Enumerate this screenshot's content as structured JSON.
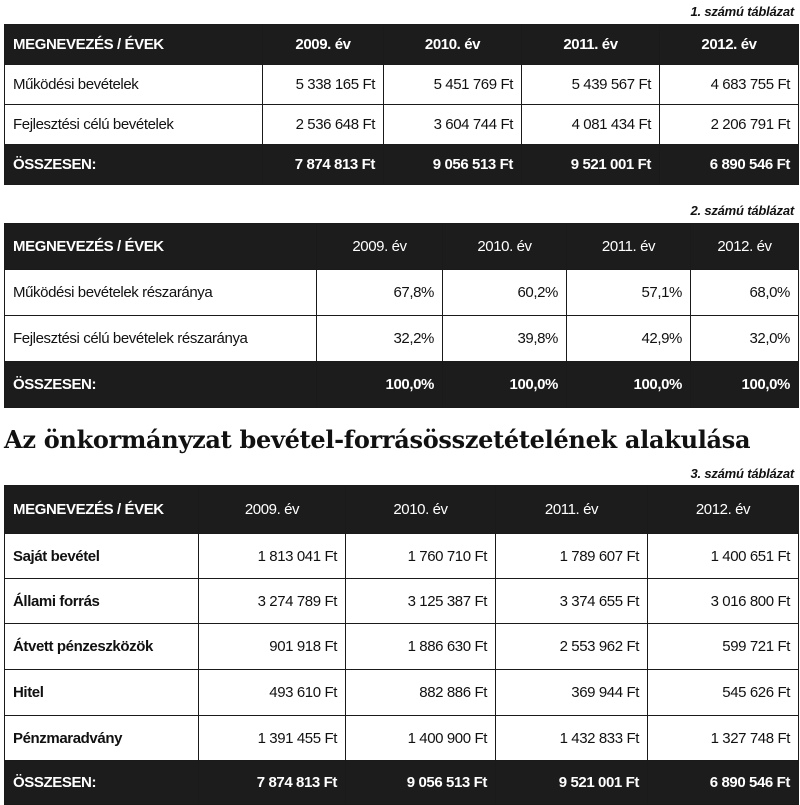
{
  "table1": {
    "caption": "1. számú táblázat",
    "header": [
      "MEGNEVEZÉS / ÉVEK",
      "2009. év",
      "2010. év",
      "2011. év",
      "2012. év"
    ],
    "rows": [
      [
        "Működési bevételek",
        "5 338 165 Ft",
        "5 451 769 Ft",
        "5 439 567 Ft",
        "4 683 755 Ft"
      ],
      [
        "Fejlesztési célú bevételek",
        "2 536 648 Ft",
        "3 604 744 Ft",
        "4 081 434 Ft",
        "2 206 791 Ft"
      ]
    ],
    "total": [
      "ÖSSZESEN:",
      "7 874 813 Ft",
      "9 056 513 Ft",
      "9 521 001 Ft",
      "6 890 546 Ft"
    ]
  },
  "table2": {
    "caption": "2. számú táblázat",
    "header": [
      "MEGNEVEZÉS / ÉVEK",
      "2009. év",
      "2010. év",
      "2011. év",
      "2012. év"
    ],
    "rows": [
      [
        "Működési bevételek részaránya",
        "67,8%",
        "60,2%",
        "57,1%",
        "68,0%"
      ],
      [
        "Fejlesztési célú bevételek részaránya",
        "32,2%",
        "39,8%",
        "42,9%",
        "32,0%"
      ]
    ],
    "total": [
      "ÖSSZESEN:",
      "100,0%",
      "100,0%",
      "100,0%",
      "100,0%"
    ]
  },
  "section_title": "Az önkormányzat bevétel-forrásösszetételének alakulása",
  "table3": {
    "caption": "3. számú táblázat",
    "header": [
      "MEGNEVEZÉS / ÉVEK",
      "2009. év",
      "2010. év",
      "2011. év",
      "2012. év"
    ],
    "rows": [
      [
        "Saját bevétel",
        "1 813 041 Ft",
        "1 760 710 Ft",
        "1 789 607 Ft",
        "1 400 651 Ft"
      ],
      [
        "Állami forrás",
        "3 274 789 Ft",
        "3 125 387 Ft",
        "3 374 655 Ft",
        "3 016 800 Ft"
      ],
      [
        "Átvett pénzeszközök",
        "901 918 Ft",
        "1 886 630 Ft",
        "2 553 962 Ft",
        "599 721 Ft"
      ],
      [
        "Hitel",
        "493 610 Ft",
        "882 886 Ft",
        "369 944 Ft",
        "545 626 Ft"
      ],
      [
        "Pénzmaradvány",
        "1 391 455 Ft",
        "1 400 900 Ft",
        "1 432 833 Ft",
        "1 327 748 Ft"
      ]
    ],
    "total": [
      "ÖSSZESEN:",
      "7 874 813 Ft",
      "9 056 513 Ft",
      "9 521 001 Ft",
      "6 890 546 Ft"
    ]
  }
}
